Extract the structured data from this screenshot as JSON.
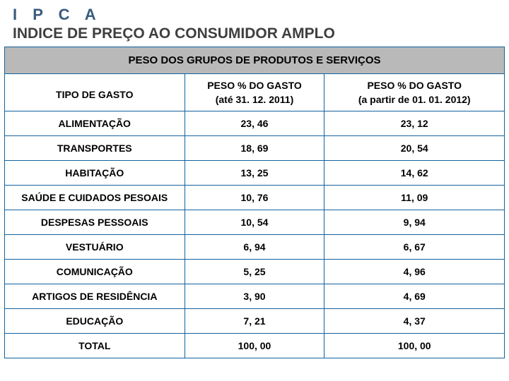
{
  "header": {
    "acronym": "I P C A",
    "full": "INDICE DE PREÇO AO CONSUMIDOR AMPLO"
  },
  "table": {
    "group_title": "PESO DOS GRUPOS DE PRODUTOS E SERVIÇOS",
    "col_headers": {
      "tipo": "TIPO DE GASTO",
      "peso1_line1": "PESO % DO GASTO",
      "peso1_line2": "(até 31. 12. 2011)",
      "peso2_line1": "PESO % DO GASTO",
      "peso2_line2": "(a partir de 01. 01. 2012)"
    },
    "rows": [
      {
        "tipo": "ALIMENTAÇÃO",
        "p1": "23, 46",
        "p2": "23, 12"
      },
      {
        "tipo": "TRANSPORTES",
        "p1": "18, 69",
        "p2": "20, 54"
      },
      {
        "tipo": "HABITAÇÃO",
        "p1": "13, 25",
        "p2": "14, 62"
      },
      {
        "tipo": "SAÚDE E CUIDADOS PESOAIS",
        "p1": "10, 76",
        "p2": "11, 09"
      },
      {
        "tipo": "DESPESAS PESSOAIS",
        "p1": "10, 54",
        "p2": "9, 94"
      },
      {
        "tipo": "VESTUÁRIO",
        "p1": "6, 94",
        "p2": "6, 67"
      },
      {
        "tipo": "COMUNICAÇÃO",
        "p1": "5, 25",
        "p2": "4, 96"
      },
      {
        "tipo": "ARTIGOS DE RESIDÊNCIA",
        "p1": "3, 90",
        "p2": "4, 69"
      },
      {
        "tipo": "EDUCAÇÃO",
        "p1": "7, 21",
        "p2": "4, 37"
      },
      {
        "tipo": "TOTAL",
        "p1": "100, 00",
        "p2": "100, 00"
      }
    ],
    "colors": {
      "border": "#12629e",
      "header_bg": "#b9b9b9",
      "text": "#000000",
      "title_acronym": "#385b7e",
      "title_full": "#3f3f3f",
      "background": "#ffffff"
    }
  }
}
